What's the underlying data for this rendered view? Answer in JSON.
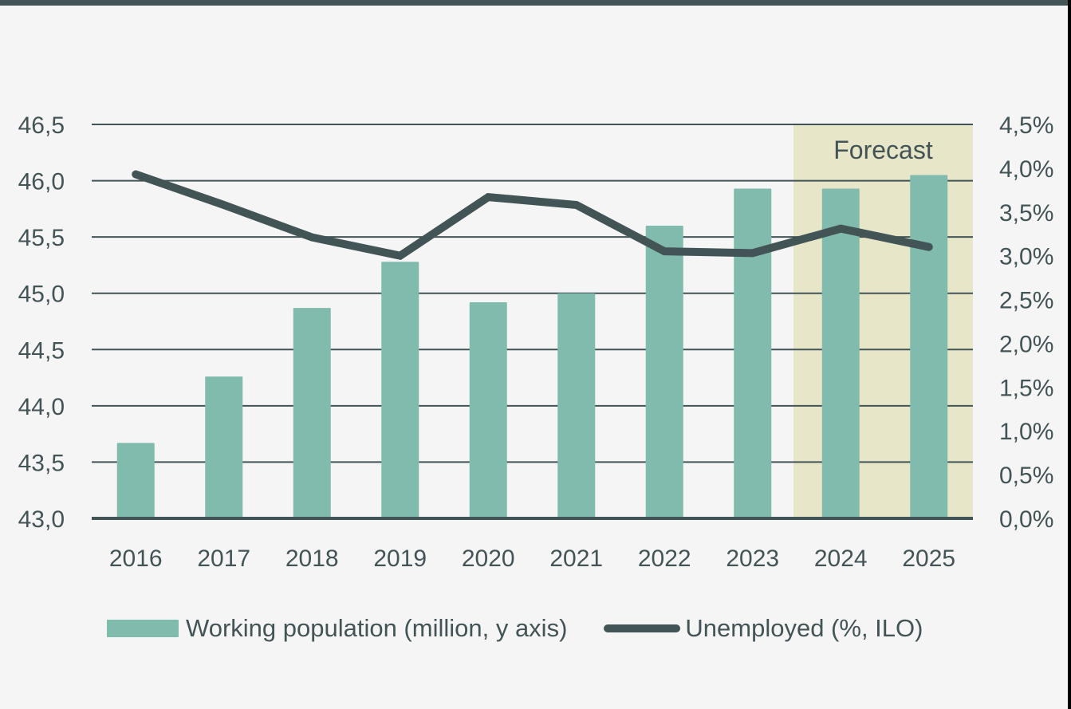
{
  "colors": {
    "background": "#f5f5f5",
    "bar": "#80bbad",
    "line": "#435457",
    "text": "#435457",
    "gridline": "#435457",
    "forecast_band": "#e8e6c8",
    "top_bar": "#435457",
    "right_edge": "#000000"
  },
  "forecast": {
    "label": "Forecast",
    "from_category": "2024",
    "to_category": "2025"
  },
  "legend": {
    "bar_label": "Working population (million, y axis)",
    "line_label": "Unemployed (%, ILO)"
  },
  "chart_data": {
    "type": "bar",
    "subtype": "bar+line dual axis",
    "title": "",
    "xlabel": "",
    "ylabel": "Working population (million)",
    "y2label": "Unemployed (%, ILO)",
    "categories": [
      "2016",
      "2017",
      "2018",
      "2019",
      "2020",
      "2021",
      "2022",
      "2023",
      "2024",
      "2025"
    ],
    "series": [
      {
        "name": "Working population (million, y axis)",
        "type": "bar",
        "axis": "left",
        "values": [
          43.67,
          44.26,
          44.87,
          45.28,
          44.92,
          45.0,
          45.6,
          45.93,
          45.93,
          46.05
        ]
      },
      {
        "name": "Unemployed (%, ILO)",
        "type": "line",
        "axis": "right",
        "values": [
          3.93,
          3.58,
          3.21,
          3.0,
          3.67,
          3.58,
          3.05,
          3.03,
          3.31,
          3.1
        ]
      }
    ],
    "ylim": [
      43.0,
      46.5
    ],
    "y2lim": [
      0.0,
      4.5
    ],
    "yticks": [
      "43,0",
      "43,5",
      "44,0",
      "44,5",
      "45,0",
      "45,5",
      "46,0",
      "46,5"
    ],
    "y2ticks": [
      "0,0%",
      "0,5%",
      "1,0%",
      "1,5%",
      "2,0%",
      "2,5%",
      "3,0%",
      "3,5%",
      "4,0%",
      "4,5%"
    ],
    "grid": true,
    "legend_position": "bottom",
    "annotations": [
      {
        "text": "Forecast",
        "region": [
          "2024",
          "2025"
        ],
        "type": "shaded-band"
      }
    ]
  }
}
